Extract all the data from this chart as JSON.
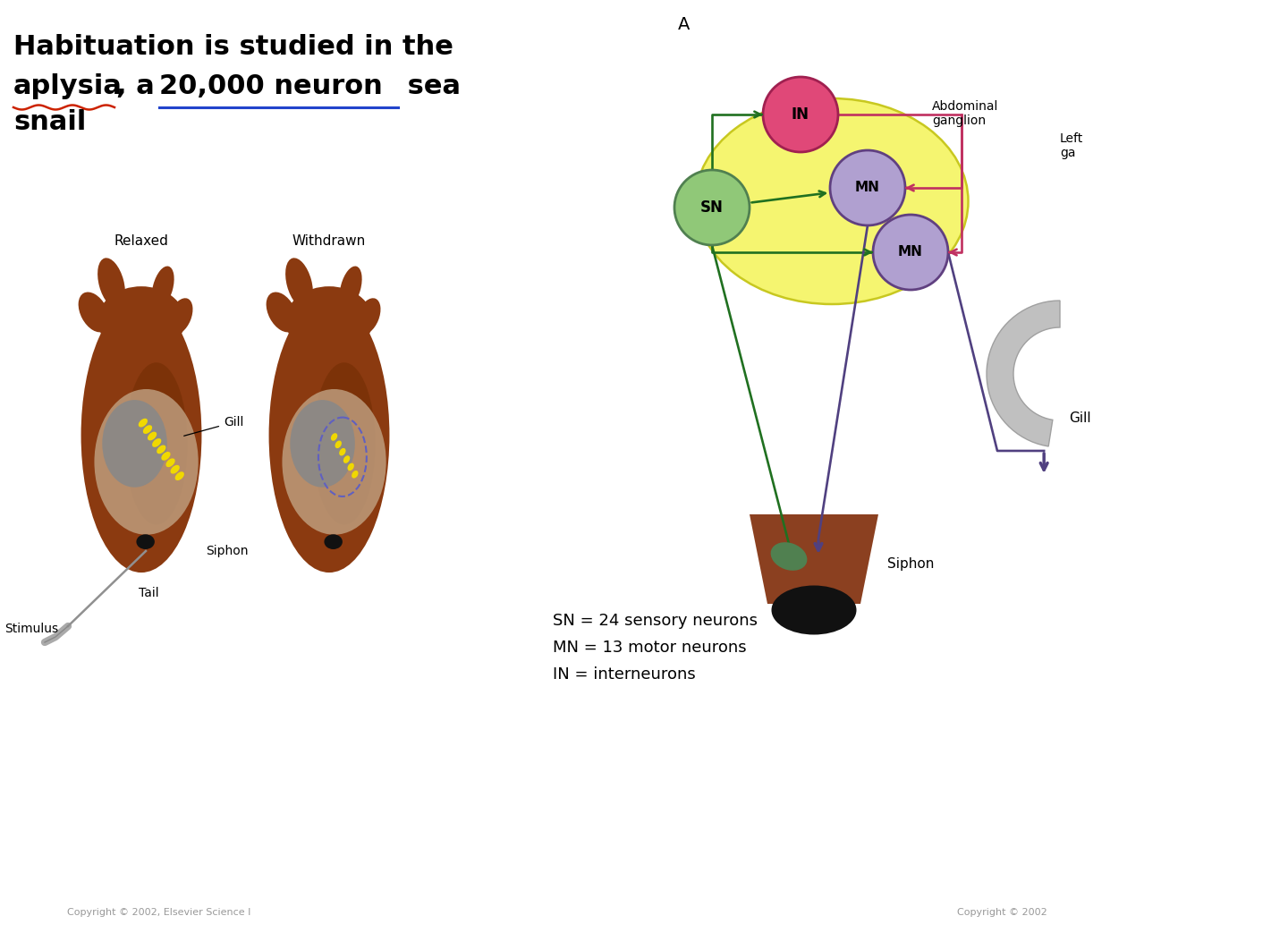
{
  "background_color": "#ffffff",
  "title_line1": "Habituation is studied in the",
  "title_line2_part1": "aplysia",
  "title_line2_part2": ", a ",
  "title_line2_part3": "20,000 neuron",
  "title_line2_part4": " sea",
  "title_line3": "snail",
  "label_A": "A",
  "label_abdominal": "Abdominal\nganglion",
  "label_left_ga": "Left\nga",
  "label_gill": "Gill",
  "label_siphon": "Siphon",
  "label_relaxed": "Relaxed",
  "label_withdrawn": "Withdrawn",
  "label_stimulus": "Stimulus",
  "label_tail": "Tail",
  "legend_text": "SN = 24 sensory neurons\nMN = 13 motor neurons\nIN = interneurons",
  "node_SN_color": "#90c878",
  "node_IN_color": "#e04878",
  "node_MN_color": "#b0a0d0",
  "node_MN_edge": "#604080",
  "node_SN_edge": "#508050",
  "node_IN_edge": "#a02050",
  "ganglion_fill": "#f5f570",
  "ganglion_edge": "#c8c820",
  "green_color": "#207020",
  "purple_color": "#504080",
  "pink_color": "#c03060",
  "snail_body_color": "#8B3A10",
  "snail_dark_color": "#6B2A00",
  "mantle_color": "#c0a080",
  "gill_yellow": "#f0d800",
  "gill_gray": "#888888",
  "copyright_left": "Copyright © 2002, Elsevier Science I",
  "copyright_right": "Copyright © 2002"
}
